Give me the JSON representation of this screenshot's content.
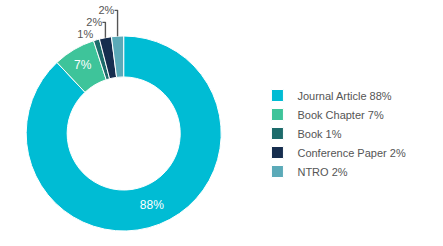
{
  "chart_data": {
    "type": "donut",
    "categories": [
      "Journal Article 88%",
      "Book Chapter 7%",
      "Book 1%",
      "Conference Paper 2%",
      "NTRO 2%"
    ],
    "values": [
      88,
      7,
      1,
      2,
      2
    ],
    "value_labels": [
      "88%",
      "7%",
      "1%",
      "2%",
      "2%"
    ],
    "colors": [
      "#00bcd4",
      "#3ec49a",
      "#1d6b6b",
      "#162d4e",
      "#5baab8"
    ],
    "data_labels": true,
    "legend": "right"
  }
}
